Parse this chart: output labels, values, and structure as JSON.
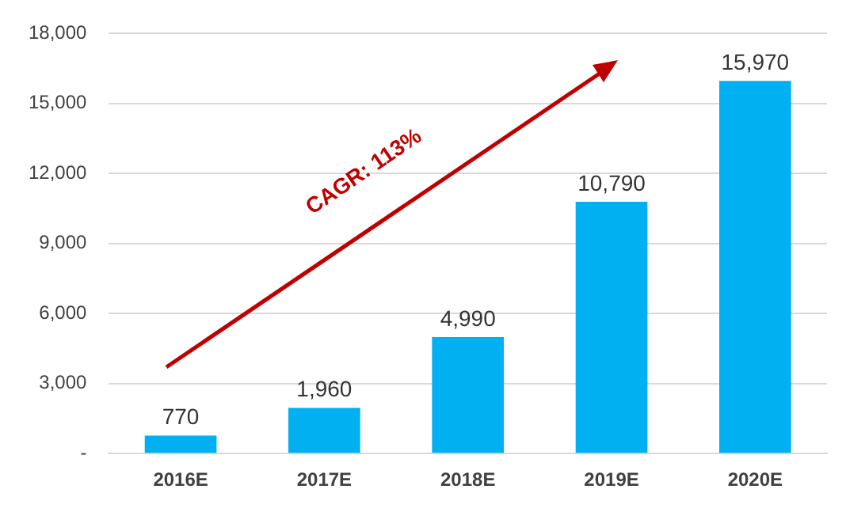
{
  "chart_data": {
    "type": "bar",
    "categories": [
      "2016E",
      "2017E",
      "2018E",
      "2019E",
      "2020E"
    ],
    "values": [
      770,
      1960,
      4990,
      10790,
      15970
    ],
    "color": "#00b0f0",
    "ylim": [
      0,
      18000
    ],
    "yticks": [
      {
        "value": 0,
        "label": "-"
      },
      {
        "value": 3000,
        "label": "3,000"
      },
      {
        "value": 6000,
        "label": "6,000"
      },
      {
        "value": 9000,
        "label": "9,000"
      },
      {
        "value": 12000,
        "label": "12,000"
      },
      {
        "value": 15000,
        "label": "15,000"
      },
      {
        "value": 18000,
        "label": "18,000"
      }
    ],
    "value_labels": [
      "770",
      "1,960",
      "4,990",
      "10,790",
      "15,970"
    ],
    "grid": "y",
    "legend": false,
    "annotations": [
      "CAGR: 113%"
    ]
  }
}
